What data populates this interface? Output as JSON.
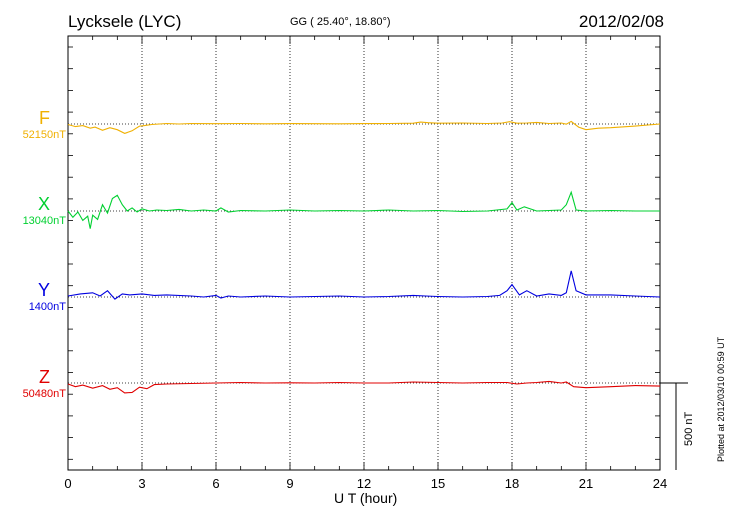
{
  "header": {
    "station": "Lycksele (LYC)",
    "coords": "GG ( 25.40°,  18.80°)",
    "date": "2012/02/08"
  },
  "footer": {
    "plotted": "Plotted at 2012/03/10 00:59 UT"
  },
  "chart_data": {
    "type": "line",
    "title": "Lycksele (LYC)",
    "xlabel": "U T (hour)",
    "xlim": [
      0,
      24
    ],
    "xticks": [
      "0",
      "3",
      "6",
      "9",
      "12",
      "15",
      "18",
      "21",
      "24"
    ],
    "scale_bar_label": "500 nT",
    "grid": true,
    "series": [
      {
        "name": "F",
        "baseline": "52150nT",
        "color": "#f0b000",
        "x": [
          0,
          0.3,
          0.6,
          0.9,
          1.1,
          1.4,
          1.7,
          2.0,
          2.3,
          2.6,
          2.9,
          3.1,
          3.4,
          3.7,
          4.0,
          4.5,
          5,
          6,
          7,
          8,
          9,
          10,
          11,
          12,
          13,
          14,
          14.3,
          14.6,
          15,
          16,
          17,
          17.6,
          17.9,
          18.2,
          18.6,
          19,
          19.5,
          20,
          20.2,
          20.4,
          20.7,
          21,
          21.5,
          22,
          23,
          24
        ],
        "y": [
          -5,
          -25,
          -15,
          -40,
          -30,
          -60,
          -35,
          -55,
          -90,
          -65,
          -20,
          -15,
          -5,
          0,
          5,
          0,
          5,
          3,
          5,
          2,
          4,
          3,
          2,
          4,
          5,
          8,
          18,
          12,
          8,
          10,
          5,
          10,
          22,
          8,
          10,
          15,
          5,
          10,
          -2,
          25,
          -30,
          -55,
          -40,
          -35,
          -20,
          0
        ]
      },
      {
        "name": "X",
        "baseline": "13040nT",
        "color": "#00d030",
        "x": [
          0,
          0.2,
          0.4,
          0.6,
          0.8,
          0.9,
          1.0,
          1.2,
          1.4,
          1.6,
          1.8,
          2.0,
          2.2,
          2.4,
          2.6,
          2.8,
          3.0,
          3.3,
          3.6,
          4,
          4.5,
          5,
          5.5,
          6,
          6.2,
          6.5,
          7,
          8,
          9,
          10,
          11,
          12,
          13,
          14,
          15,
          16,
          17,
          17.8,
          18.0,
          18.2,
          18.5,
          19,
          19.5,
          20,
          20.2,
          20.4,
          20.6,
          21,
          22,
          23,
          24
        ],
        "y": [
          0,
          -60,
          -10,
          -90,
          -50,
          -170,
          -40,
          -80,
          60,
          -20,
          120,
          150,
          60,
          0,
          30,
          -10,
          20,
          0,
          10,
          5,
          15,
          0,
          10,
          0,
          30,
          -10,
          5,
          0,
          10,
          0,
          5,
          0,
          10,
          0,
          5,
          -5,
          0,
          20,
          80,
          10,
          40,
          0,
          5,
          10,
          60,
          180,
          10,
          0,
          5,
          0,
          0
        ]
      },
      {
        "name": "Y",
        "baseline": "1400nT",
        "color": "#0000e0",
        "x": [
          0,
          0.5,
          1.0,
          1.3,
          1.6,
          1.9,
          2.2,
          2.5,
          3.0,
          3.5,
          4,
          5,
          5.5,
          6,
          6.2,
          6.5,
          7,
          8,
          9,
          10,
          11,
          12,
          13,
          14,
          14.5,
          15,
          16,
          17,
          17.5,
          17.8,
          18.0,
          18.3,
          18.6,
          19,
          19.5,
          20,
          20.2,
          20.4,
          20.6,
          21,
          22,
          23,
          24
        ],
        "y": [
          10,
          30,
          40,
          10,
          60,
          -20,
          30,
          20,
          30,
          15,
          20,
          10,
          0,
          15,
          -10,
          10,
          0,
          10,
          0,
          5,
          10,
          0,
          5,
          15,
          10,
          5,
          0,
          5,
          15,
          60,
          120,
          20,
          60,
          10,
          30,
          15,
          40,
          250,
          60,
          20,
          20,
          10,
          0
        ]
      },
      {
        "name": "Z",
        "baseline": "50480nT",
        "color": "#e00000",
        "x": [
          0,
          0.3,
          0.6,
          1.0,
          1.4,
          1.7,
          2.0,
          2.3,
          2.6,
          2.9,
          3.2,
          3.5,
          4,
          5,
          6,
          7,
          8,
          9,
          10,
          11,
          12,
          13,
          14,
          15,
          16,
          17,
          17.8,
          18.2,
          18.6,
          19,
          19.5,
          20,
          20.2,
          20.5,
          21,
          21.5,
          22,
          23,
          24
        ],
        "y": [
          -10,
          -35,
          -20,
          -50,
          -25,
          -60,
          -45,
          -95,
          -90,
          -40,
          -55,
          -15,
          -10,
          -5,
          0,
          5,
          0,
          2,
          0,
          5,
          0,
          0,
          10,
          5,
          0,
          5,
          5,
          -10,
          0,
          5,
          15,
          0,
          10,
          -35,
          -45,
          -40,
          -35,
          -25,
          -30
        ]
      }
    ]
  }
}
